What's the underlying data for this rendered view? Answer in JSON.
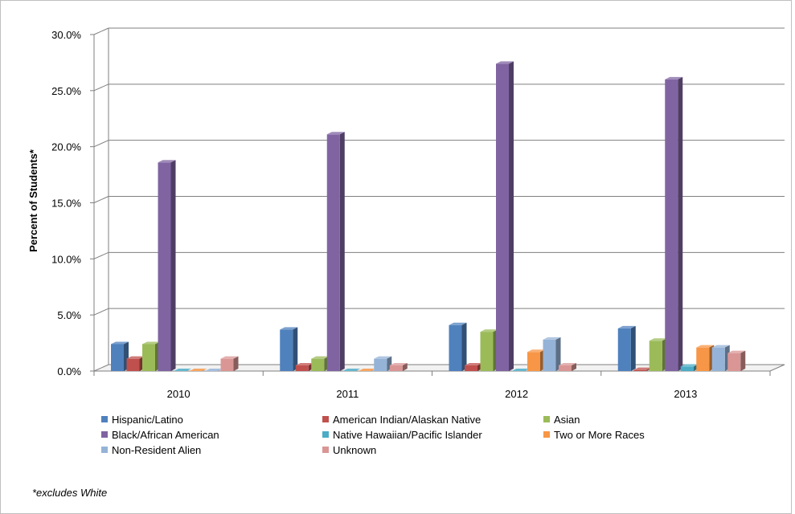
{
  "chart_data": {
    "type": "bar",
    "ylabel": "Percent of Students*",
    "xlabel": "",
    "ylim": [
      0,
      30
    ],
    "ytick_values": [
      0,
      5,
      10,
      15,
      20,
      25,
      30
    ],
    "ytick_labels": [
      "0.0%",
      "5.0%",
      "10.0%",
      "15.0%",
      "20.0%",
      "25.0%",
      "30.0%"
    ],
    "categories": [
      "2010",
      "2011",
      "2012",
      "2013"
    ],
    "grid": true,
    "legend_position": "bottom",
    "series": [
      {
        "name": "Hispanic/Latino",
        "color": "#4f81bd",
        "values": [
          2.4,
          3.7,
          4.1,
          3.8
        ]
      },
      {
        "name": "American Indian/Alaskan Native",
        "color": "#c0504d",
        "values": [
          1.1,
          0.5,
          0.5,
          0.1
        ]
      },
      {
        "name": "Asian",
        "color": "#9bbb59",
        "values": [
          2.4,
          1.1,
          3.5,
          2.7
        ]
      },
      {
        "name": "Black/African American",
        "color": "#8064a2",
        "values": [
          18.6,
          21.1,
          27.4,
          26.0
        ]
      },
      {
        "name": "Native Hawaiian/Pacific Islander",
        "color": "#4bacc6",
        "values": [
          0.0,
          0.0,
          0.0,
          0.4
        ]
      },
      {
        "name": "Two or More Races",
        "color": "#f79646",
        "values": [
          0.0,
          0.0,
          1.7,
          2.1
        ]
      },
      {
        "name": "Non-Resident Alien",
        "color": "#95b3d7",
        "values": [
          0.0,
          1.1,
          2.8,
          2.1
        ]
      },
      {
        "name": "Unknown",
        "color": "#d99694",
        "values": [
          1.1,
          0.5,
          0.5,
          1.6
        ]
      }
    ]
  },
  "footnote": "*excludes White"
}
